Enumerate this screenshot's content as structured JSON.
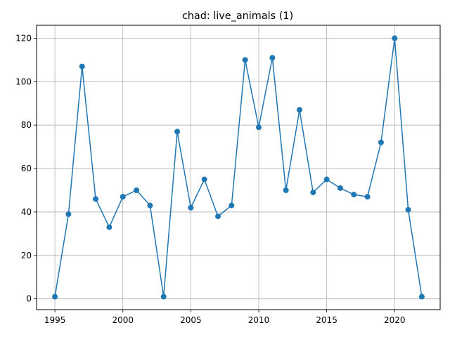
{
  "chart_data": {
    "type": "line",
    "title": "chad: live_animals (1)",
    "xlabel": "",
    "ylabel": "",
    "grid": true,
    "color": "#1f77b4",
    "x": [
      1995,
      1996,
      1997,
      1998,
      1999,
      2000,
      2001,
      2002,
      2003,
      2004,
      2005,
      2006,
      2007,
      2008,
      2009,
      2010,
      2011,
      2012,
      2013,
      2014,
      2015,
      2016,
      2017,
      2018,
      2019,
      2020,
      2021,
      2022
    ],
    "y": [
      1,
      39,
      107,
      46,
      33,
      47,
      50,
      43,
      1,
      77,
      42,
      55,
      38,
      43,
      110,
      79,
      111,
      50,
      87,
      49,
      55,
      51,
      48,
      47,
      72,
      120,
      41,
      1
    ],
    "xlim": [
      1993.65,
      2023.35
    ],
    "ylim": [
      -4.95,
      125.95
    ],
    "xticks": [
      1995,
      2000,
      2005,
      2010,
      2015,
      2020
    ],
    "yticks": [
      0,
      20,
      40,
      60,
      80,
      100,
      120
    ]
  }
}
